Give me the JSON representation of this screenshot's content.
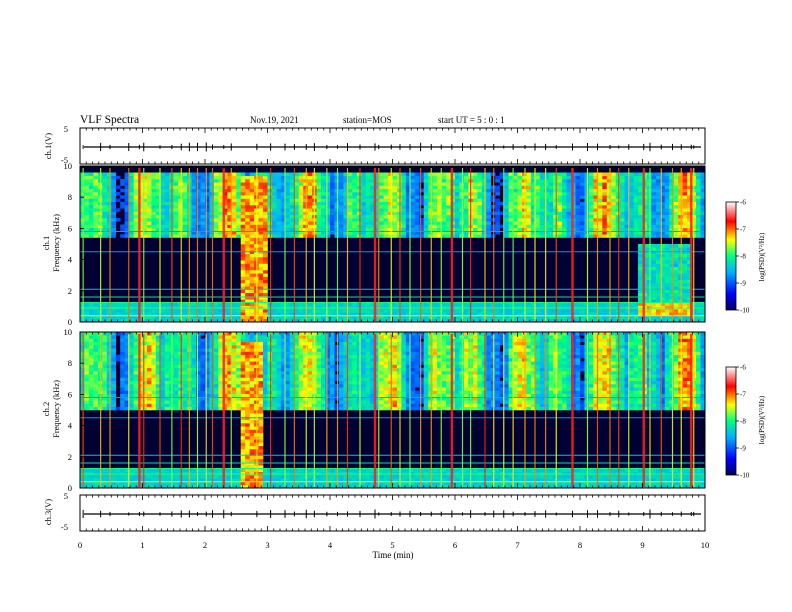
{
  "header": {
    "title": "VLF Spectra",
    "date": "Nov.19, 2021",
    "station": "station=MOS",
    "start": "start  UT =   5 : 0  : 1"
  },
  "chart_data": {
    "type": "heatmap",
    "time_axis": {
      "label": "Time  (min)",
      "range": [
        0,
        10
      ],
      "ticks": [
        "0",
        "1",
        "2",
        "3",
        "4",
        "5",
        "6",
        "7",
        "8",
        "9",
        "10"
      ]
    },
    "panels": [
      {
        "id": "ch1-waveform",
        "ylabel": "ch.1(V)",
        "ylim": [
          -5,
          5
        ],
        "yticks": [
          "5",
          "-5"
        ]
      },
      {
        "id": "ch1-spectrogram",
        "ylabel_line1": "ch.1",
        "ylabel_line2": "Frequency (kHz)",
        "ylim": [
          0,
          10
        ],
        "yticks": [
          "0",
          "2",
          "4",
          "6",
          "8",
          "10"
        ],
        "hiss_band_khz": [
          5.5,
          9.5
        ],
        "broadband_burst_min": [
          2.55,
          3.0
        ],
        "hiss_patch": {
          "t_min": [
            8.9,
            9.8
          ],
          "f_khz": [
            0.5,
            5
          ]
        }
      },
      {
        "id": "ch2-spectrogram",
        "ylabel_line1": "ch.2",
        "ylabel_line2": "Frequency (kHz)",
        "ylim": [
          0,
          10
        ],
        "yticks": [
          "0",
          "2",
          "4",
          "6",
          "8",
          "10"
        ],
        "hiss_band_khz": [
          5.0,
          10.0
        ],
        "broadband_burst_min": [
          2.6,
          2.95
        ]
      },
      {
        "id": "ch3-waveform",
        "ylabel": "ch.3(V)",
        "ylim": [
          -5,
          5
        ],
        "yticks": [
          "5",
          "-5"
        ]
      }
    ],
    "colorbars": [
      {
        "label": "log(PSD)(V²/Hz)",
        "range": [
          -10,
          -6
        ],
        "ticks": [
          "-6",
          "-7",
          "-8",
          "-9",
          "-10"
        ]
      },
      {
        "label": "log(PSD)(V²/Hz)",
        "range": [
          -10,
          -6
        ],
        "ticks": [
          "-6",
          "-7",
          "-8",
          "-9",
          "-10"
        ]
      }
    ],
    "colormap": [
      "#000060",
      "#0000ff",
      "#00b0ff",
      "#00ff80",
      "#ffff00",
      "#ff0000",
      "#ffffff"
    ],
    "sferic_times_min": [
      0.05,
      0.33,
      0.48,
      0.78,
      0.95,
      1.02,
      1.28,
      1.47,
      1.62,
      1.75,
      1.88,
      2.02,
      2.12,
      2.3,
      2.42,
      2.83,
      3.05,
      3.28,
      3.43,
      3.62,
      3.75,
      3.95,
      4.12,
      4.28,
      4.48,
      4.72,
      4.78,
      4.98,
      5.12,
      5.28,
      5.45,
      5.62,
      5.78,
      5.95,
      6.12,
      6.25,
      6.48,
      6.62,
      6.78,
      6.93,
      7.12,
      7.28,
      7.45,
      7.62,
      7.88,
      8.12,
      8.28,
      8.48,
      8.62,
      8.78,
      9.02,
      9.12,
      9.3,
      9.48,
      9.62,
      9.78,
      9.82
    ],
    "strong_sferic_times_min": [
      0.95,
      2.3,
      4.72,
      5.95,
      7.88,
      9.02,
      9.78
    ]
  }
}
